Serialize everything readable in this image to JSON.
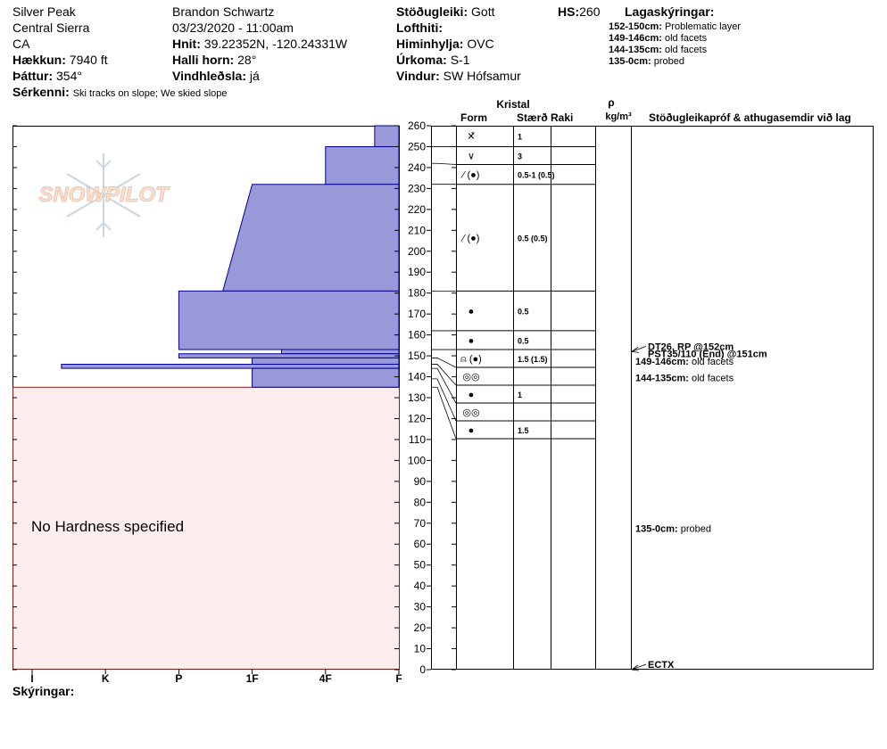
{
  "header": {
    "location": "Silver Peak",
    "range": "Central Sierra",
    "state": "CA",
    "elevation_label": "Hækkun:",
    "elevation": "7940 ft",
    "aspect_label": "Þáttur:",
    "aspect": "354°",
    "features_label": "Sérkenni:",
    "features": "Ski tracks on slope; We skied slope",
    "observer": "Brandon Schwartz",
    "datetime": "03/23/2020 - 11:00am",
    "coords_label": "Hnit:",
    "coords": "39.22352N, -120.24331W",
    "slope_label": "Halli horn:",
    "slope": "28°",
    "wind_loading_label": "Vindhleðsla:",
    "wind_loading": "já",
    "stability_label": "Stöðugleiki:",
    "stability": "Gott",
    "air_temp_label": "Lofthiti:",
    "air_temp": "",
    "sky_label": "Himinhylja:",
    "sky": "OVC",
    "precip_label": "Úrkoma:",
    "precip": "S-1",
    "wind_label": "Vindur:",
    "wind": "SW Hófsamur",
    "hs_label": "HS:",
    "hs": "260",
    "legend_title": "Lagaskýringar:",
    "legend": [
      {
        "range": "152-150cm:",
        "text": "Problematic layer"
      },
      {
        "range": "149-146cm:",
        "text": "old facets"
      },
      {
        "range": "144-135cm:",
        "text": "old facets"
      },
      {
        "range": "135-0cm:",
        "text": "probed"
      }
    ]
  },
  "footer": {
    "notes_label": "Skýringar:"
  },
  "colors": {
    "hardness_fill": "#9999d9",
    "hardness_stroke": "#00008b",
    "no_hardness_fill": "#fdeeee",
    "no_hardness_stroke": "#8b1a1a"
  },
  "chart_data": {
    "type": "snow-profile",
    "watermark": "SNOWPILOT",
    "no_hardness_text": "No Hardness specified",
    "hardness_ticks": [
      "I",
      "K",
      "P",
      "1F",
      "4F",
      "F"
    ],
    "ylim": [
      0,
      260
    ],
    "y_ticks": [
      0,
      10,
      20,
      30,
      40,
      50,
      60,
      70,
      80,
      90,
      100,
      110,
      120,
      130,
      140,
      150,
      160,
      170,
      180,
      190,
      200,
      210,
      220,
      230,
      240,
      250,
      260
    ],
    "hardness_scale": "F=0, 4F=1, 1F=2, P=3, K=4, I=5",
    "layers": [
      {
        "top": 260,
        "bottom": 250,
        "hardness_top": 0.33,
        "hardness_bottom": 0.33
      },
      {
        "top": 250,
        "bottom": 232,
        "hardness_top": 1.0,
        "hardness_bottom": 1.0
      },
      {
        "top": 232,
        "bottom": 181,
        "hardness_top": 2.0,
        "hardness_bottom": 2.4
      },
      {
        "top": 181,
        "bottom": 153,
        "hardness_top": 3.0,
        "hardness_bottom": 3.0
      },
      {
        "top": 153,
        "bottom": 151,
        "hardness_top": 1.6,
        "hardness_bottom": 1.6
      },
      {
        "top": 151,
        "bottom": 149,
        "hardness_top": 3.0,
        "hardness_bottom": 3.0
      },
      {
        "top": 149,
        "bottom": 146,
        "hardness_top": 2.0,
        "hardness_bottom": 2.0
      },
      {
        "top": 146,
        "bottom": 144,
        "hardness_top": 4.6,
        "hardness_bottom": 4.6
      },
      {
        "top": 144,
        "bottom": 135,
        "hardness_top": 2.0,
        "hardness_bottom": 2.0
      }
    ],
    "table": {
      "crystal_title": "Kristal",
      "col_form": "Form",
      "col_size": "Stærð",
      "col_moisture": "Raki",
      "density_symbol": "ρ",
      "density_unit": "kg/m³",
      "col_tests": "Stöðugleikapróf & athugasemdir við lag",
      "rows": [
        {
          "top": 260,
          "bottom": 250,
          "form": "✕̄",
          "size": "1"
        },
        {
          "top": 250,
          "bottom": 242,
          "form": "∨",
          "size": "3"
        },
        {
          "top": 242,
          "bottom": 232,
          "form": "⁄ (●)",
          "size": "0.5-1 (0.5)"
        },
        {
          "top": 232,
          "bottom": 181,
          "form": "⁄ (●)",
          "size": "0.5 (0.5)"
        },
        {
          "top": 181,
          "bottom": 162,
          "form": "●",
          "size": "0.5"
        },
        {
          "top": 162,
          "bottom": 153,
          "form": "●",
          "size": "0.5"
        },
        {
          "top": 153,
          "bottom": 149,
          "form": "⍝ (●)",
          "size": "1.5 (1.5)"
        },
        {
          "top": 149,
          "bottom": 146,
          "form": "◎◎",
          "size": ""
        },
        {
          "top": 146,
          "bottom": 144,
          "form": "●",
          "size": "1"
        },
        {
          "top": 144,
          "bottom": 139,
          "form": "◎◎",
          "size": ""
        },
        {
          "top": 139,
          "bottom": 135,
          "form": "●",
          "size": "1.5"
        }
      ]
    },
    "annotations": [
      {
        "y": 152,
        "text": "DT26, RP @152cm",
        "arrow": true
      },
      {
        "y": 151,
        "text": "PST35/110 (End) @151cm",
        "arrow": false
      },
      {
        "y": 147.5,
        "range": "149-146cm:",
        "text": "old facets"
      },
      {
        "y": 139.5,
        "range": "144-135cm:",
        "text": "old facets"
      },
      {
        "y": 67.5,
        "range": "135-0cm:",
        "text": "probed"
      },
      {
        "y": 0,
        "text": "ECTX",
        "arrow": true
      }
    ]
  }
}
